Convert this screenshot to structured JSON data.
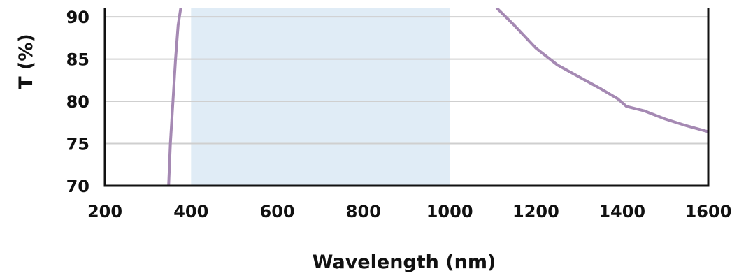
{
  "chart_data": {
    "type": "line",
    "title": "",
    "xlabel": "Wavelength (nm)",
    "ylabel": "T (%)",
    "xlim": [
      200,
      1600
    ],
    "ylim": [
      70,
      91
    ],
    "x_ticks": [
      200,
      400,
      600,
      800,
      1000,
      1200,
      1400,
      1600
    ],
    "y_ticks": [
      70,
      75,
      80,
      85,
      90
    ],
    "x_tick_labels": [
      "200",
      "400",
      "600",
      "800",
      "1000",
      "1200",
      "1400",
      "1600"
    ],
    "y_tick_labels": [
      "70",
      "75",
      "80",
      "85",
      "90"
    ],
    "grid": "horizontal",
    "highlight_band": {
      "from": 400,
      "to": 1000,
      "color": "#e0ecf6"
    },
    "line_color": "#a589b3",
    "series": [
      {
        "segments": [
          [
            [
              348,
              70
            ],
            [
              352,
              75
            ],
            [
              358,
              80
            ],
            [
              364,
              85
            ],
            [
              370,
              89
            ],
            [
              376,
              91
            ]
          ],
          [
            [
              1110,
              91
            ],
            [
              1150,
              89
            ],
            [
              1200,
              86.3
            ],
            [
              1250,
              84.3
            ],
            [
              1300,
              82.9
            ],
            [
              1350,
              81.5
            ],
            [
              1390,
              80.3
            ],
            [
              1410,
              79.4
            ],
            [
              1450,
              78.9
            ],
            [
              1500,
              77.9
            ],
            [
              1550,
              77.1
            ],
            [
              1600,
              76.4
            ]
          ]
        ]
      }
    ]
  }
}
